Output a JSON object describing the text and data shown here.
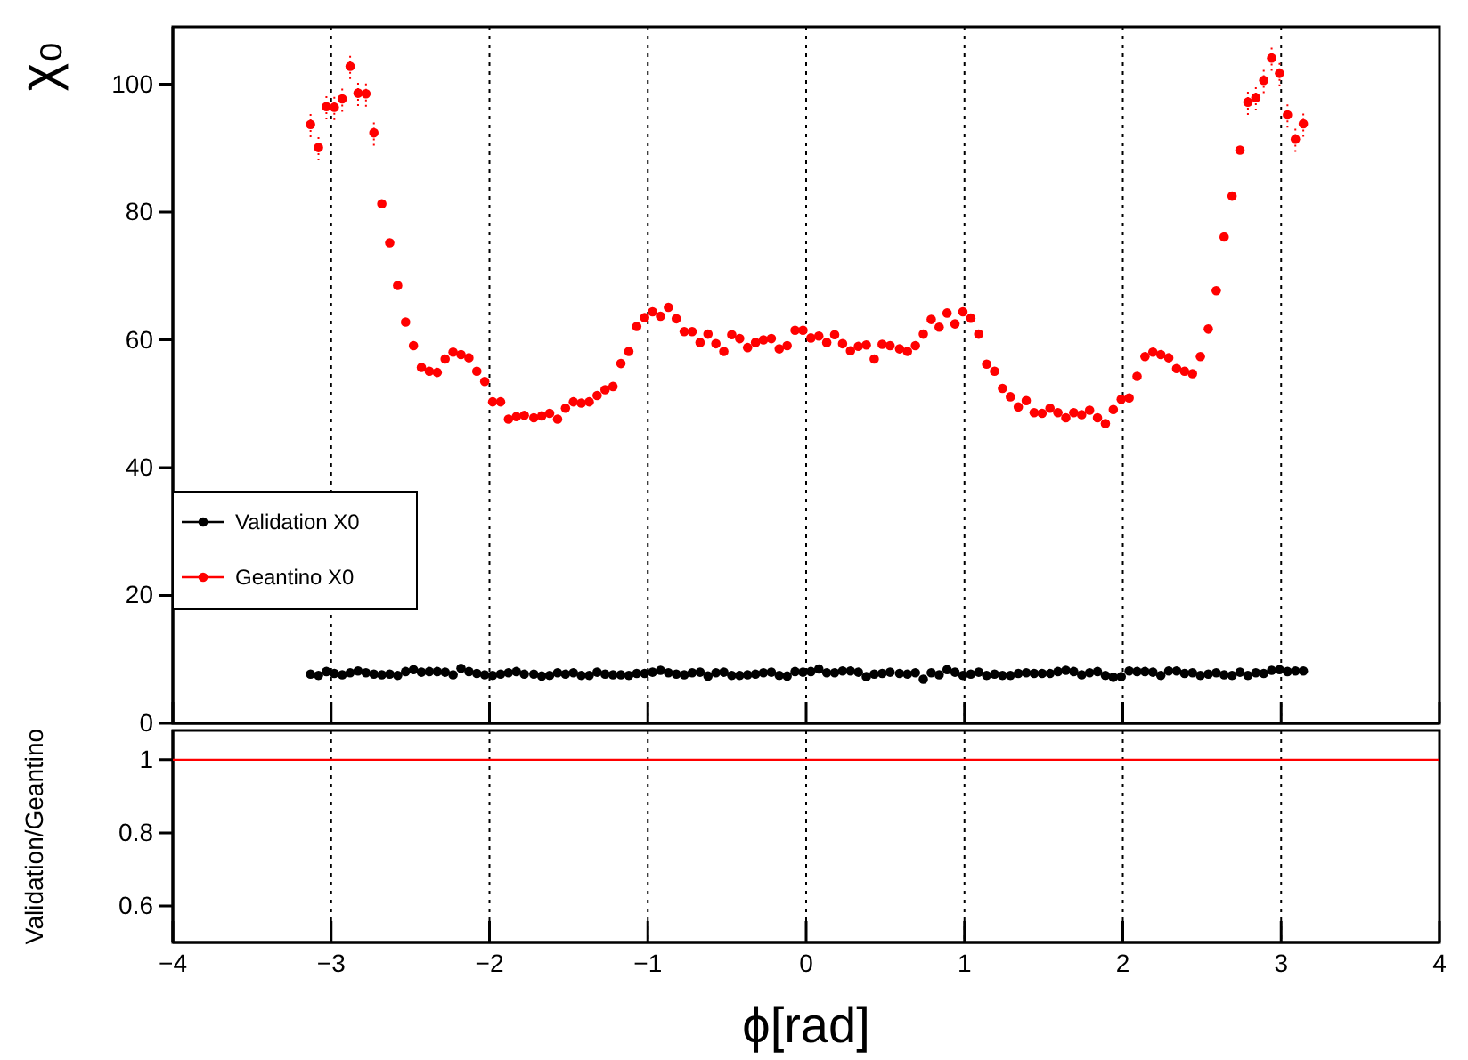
{
  "chart_data": [
    {
      "type": "scatter",
      "ylabel": "χ₀",
      "xlim": [
        -4,
        4
      ],
      "xticks": [
        -4,
        -3,
        -2,
        -1,
        0,
        1,
        2,
        3,
        4
      ],
      "ylim": [
        0,
        109
      ],
      "yticks": [
        0,
        20,
        40,
        60,
        80,
        100
      ],
      "tick_labels": "y",
      "grid": "x",
      "legend": "bottom left",
      "marker": "circle",
      "x": [
        -3.13,
        -3.08,
        -3.03,
        -2.98,
        -2.93,
        -2.88,
        -2.83,
        -2.78,
        -2.73,
        -2.68,
        -2.63,
        -2.58,
        -2.53,
        -2.48,
        -2.43,
        -2.38,
        -2.33,
        -2.28,
        -2.23,
        -2.18,
        -2.13,
        -2.08,
        -2.03,
        -1.98,
        -1.93,
        -1.88,
        -1.83,
        -1.78,
        -1.72,
        -1.67,
        -1.62,
        -1.57,
        -1.52,
        -1.47,
        -1.42,
        -1.37,
        -1.32,
        -1.27,
        -1.22,
        -1.17,
        -1.12,
        -1.07,
        -1.02,
        -0.97,
        -0.92,
        -0.87,
        -0.82,
        -0.77,
        -0.72,
        -0.67,
        -0.62,
        -0.57,
        -0.52,
        -0.47,
        -0.42,
        -0.37,
        -0.32,
        -0.27,
        -0.22,
        -0.17,
        -0.12,
        -0.07,
        -0.02,
        0.03,
        0.08,
        0.13,
        0.18,
        0.23,
        0.28,
        0.33,
        0.38,
        0.43,
        0.48,
        0.53,
        0.59,
        0.64,
        0.69,
        0.74,
        0.79,
        0.84,
        0.89,
        0.94,
        0.99,
        1.04,
        1.09,
        1.14,
        1.19,
        1.24,
        1.29,
        1.34,
        1.39,
        1.44,
        1.49,
        1.54,
        1.59,
        1.64,
        1.69,
        1.74,
        1.79,
        1.84,
        1.89,
        1.94,
        1.99,
        2.04,
        2.09,
        2.14,
        2.19,
        2.24,
        2.29,
        2.34,
        2.39,
        2.44,
        2.49,
        2.54,
        2.59,
        2.64,
        2.69,
        2.74,
        2.79,
        2.84,
        2.89,
        2.94,
        2.99,
        3.04,
        3.09,
        3.14
      ],
      "series": [
        {
          "name": "Validation X0",
          "color": "#000000",
          "values": [
            7.7,
            7.5,
            8.1,
            7.8,
            7.6,
            7.9,
            8.2,
            7.9,
            7.7,
            7.6,
            7.7,
            7.5,
            8.1,
            8.4,
            8.0,
            8.1,
            8.1,
            8.0,
            7.6,
            8.6,
            8.1,
            7.8,
            7.6,
            7.5,
            7.7,
            7.9,
            8.1,
            7.7,
            7.7,
            7.4,
            7.5,
            7.9,
            7.7,
            7.9,
            7.5,
            7.5,
            8.0,
            7.7,
            7.6,
            7.6,
            7.5,
            7.8,
            7.8,
            8.0,
            8.3,
            7.9,
            7.7,
            7.6,
            7.9,
            8.0,
            7.4,
            7.9,
            8.0,
            7.5,
            7.5,
            7.6,
            7.7,
            7.9,
            8.0,
            7.5,
            7.4,
            8.1,
            8.0,
            8.1,
            8.5,
            7.9,
            7.9,
            8.2,
            8.2,
            8.0,
            7.3,
            7.7,
            7.8,
            8.0,
            7.8,
            7.7,
            7.9,
            6.9,
            7.9,
            7.6,
            8.4,
            8.0,
            7.5,
            7.7,
            8.0,
            7.5,
            7.7,
            7.5,
            7.5,
            7.8,
            7.9,
            7.8,
            7.8,
            7.8,
            8.1,
            8.3,
            8.1,
            7.6,
            7.9,
            8.1,
            7.5,
            7.2,
            7.3,
            8.2,
            8.1,
            8.1,
            8.0,
            7.5,
            8.2,
            8.2,
            7.8,
            7.9,
            7.5,
            7.7,
            7.9,
            7.6,
            7.5,
            8.0,
            7.5,
            7.9,
            7.8,
            8.3,
            8.4,
            8.1,
            8.2,
            8.2
          ]
        },
        {
          "name": "Geantino X0",
          "color": "#ff0000",
          "values": [
            93.7,
            90.1,
            96.5,
            96.4,
            97.7,
            102.8,
            98.6,
            98.5,
            92.4,
            81.3,
            75.2,
            68.5,
            62.8,
            59.1,
            55.7,
            55.1,
            54.9,
            57.0,
            58.1,
            57.7,
            57.2,
            55.1,
            53.5,
            50.3,
            50.3,
            47.6,
            48.0,
            48.2,
            47.8,
            48.1,
            48.5,
            47.6,
            49.3,
            50.3,
            50.1,
            50.3,
            51.3,
            52.2,
            52.7,
            56.3,
            58.2,
            62.1,
            63.5,
            64.4,
            63.7,
            65.1,
            63.3,
            61.3,
            61.3,
            59.6,
            60.9,
            59.4,
            58.2,
            60.8,
            60.2,
            58.8,
            59.6,
            60.0,
            60.2,
            58.6,
            59.1,
            61.5,
            61.5,
            60.3,
            60.6,
            59.6,
            60.8,
            59.4,
            58.3,
            59.0,
            59.2,
            57.0,
            59.3,
            59.1,
            58.6,
            58.2,
            59.1,
            60.9,
            63.2,
            62.0,
            64.2,
            62.5,
            64.4,
            63.4,
            60.9,
            56.2,
            55.1,
            52.4,
            51.1,
            49.5,
            50.5,
            48.6,
            48.5,
            49.3,
            48.6,
            47.8,
            48.6,
            48.3,
            49.0,
            47.8,
            46.9,
            49.1,
            50.7,
            50.9,
            54.3,
            57.4,
            58.1,
            57.7,
            57.2,
            55.5,
            55.1,
            54.7,
            57.4,
            61.7,
            67.7,
            76.1,
            82.5,
            89.7,
            97.2,
            97.9,
            100.6,
            104.1,
            101.7,
            95.2,
            91.4,
            93.8
          ],
          "errors": [
            2,
            2,
            2,
            2,
            2,
            2,
            2,
            2,
            2,
            null,
            null,
            null,
            null,
            null,
            null,
            null,
            null,
            null,
            null,
            null,
            null,
            null,
            null,
            null,
            null,
            null,
            null,
            null,
            null,
            null,
            null,
            null,
            null,
            null,
            null,
            null,
            null,
            null,
            null,
            null,
            null,
            null,
            null,
            null,
            null,
            null,
            null,
            null,
            null,
            null,
            null,
            null,
            null,
            null,
            null,
            null,
            null,
            null,
            null,
            null,
            null,
            null,
            null,
            null,
            null,
            null,
            null,
            null,
            null,
            null,
            null,
            null,
            null,
            null,
            null,
            null,
            null,
            null,
            null,
            null,
            null,
            null,
            null,
            null,
            null,
            null,
            null,
            null,
            null,
            null,
            null,
            null,
            null,
            null,
            null,
            null,
            null,
            null,
            null,
            null,
            null,
            null,
            null,
            null,
            null,
            null,
            null,
            null,
            null,
            null,
            null,
            null,
            null,
            null,
            null,
            null,
            null,
            null,
            2,
            2,
            2,
            2,
            2,
            2,
            2,
            2
          ]
        }
      ]
    },
    {
      "type": "line",
      "xlabel": "ϕ[rad]",
      "ylabel": "Validation/Geantino",
      "xlim": [
        -4,
        4
      ],
      "xticks": [
        {
          "value": -4,
          "label": "−4"
        },
        {
          "value": -3,
          "label": "−3"
        },
        {
          "value": -2,
          "label": "−2"
        },
        {
          "value": -1,
          "label": "−1"
        },
        0,
        1,
        2,
        3,
        4
      ],
      "ylim": [
        0.5,
        1.08
      ],
      "yticks": [
        0.6,
        0.8,
        1
      ],
      "grid": "x",
      "marker": "none",
      "series": [
        {
          "color": "#ff0000",
          "x": [
            -4,
            4
          ],
          "values": [
            1,
            1
          ]
        }
      ]
    }
  ]
}
